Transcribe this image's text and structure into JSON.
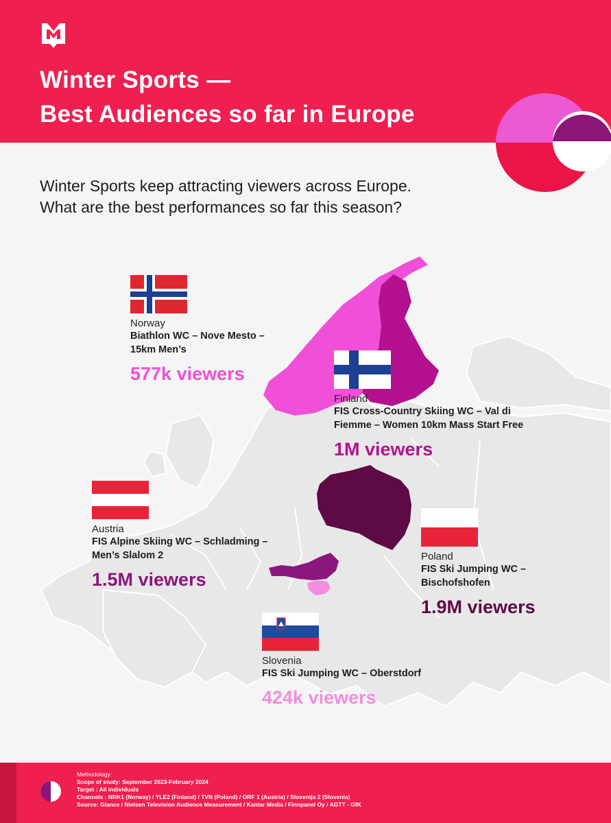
{
  "header": {
    "logo": "m-logo-icon",
    "title_line1": "Winter Sports —",
    "title_line2": "Best Audiences so far in Europe"
  },
  "intro": {
    "line1": "Winter Sports keep attracting viewers across Europe.",
    "line2": "What are the best performances so far this season?"
  },
  "entries": {
    "norway": {
      "country": "Norway",
      "event_line1": "Biathlon WC – Nove Mesto –",
      "event_line2": "15km Men’s",
      "viewers": "577k viewers",
      "color": "#f04fd8"
    },
    "finland": {
      "country": "Finland",
      "event_line1": "FIS Cross-Country Skiing WC – Val di",
      "event_line2": "Fiemme – Women 10km Mass Start Free",
      "viewers": "1M viewers",
      "color": "#b3118f"
    },
    "austria": {
      "country": "Austria",
      "event_line1": "FIS Alpine Skiing WC – Schladming –",
      "event_line2": "Men’s Slalom 2",
      "viewers": "1.5M viewers",
      "color": "#8b167c"
    },
    "poland": {
      "country": "Poland",
      "event_line1": "FIS Ski Jumping WC –",
      "event_line2": "Bischofshofen",
      "viewers": "1.9M viewers",
      "color": "#5e0a45"
    },
    "slovenia": {
      "country": "Slovenia",
      "event_line1": "FIS Ski Jumping WC – Oberstdorf",
      "viewers": "424k viewers",
      "color": "#f28ee0"
    }
  },
  "footer": {
    "methodology_label": "Methodology:",
    "scope": "Scope of study: September 2023-February 2024",
    "target": "Target : All individuals",
    "channels": "Channels : NRK1 (Norway)  /  YLE2 (Finland)  /  TVN (Poland)  /  ORF 1 (Austria)  /  Slovenija 2 (Slovenia)",
    "source": "Source: Glance / Nielsen Television Audience Measurement / Kantar Media / Finnpanel Oy / AGTT - GfK"
  },
  "colors": {
    "brand_red": "#ef1f4f",
    "map_base": "#e9e9e9"
  }
}
